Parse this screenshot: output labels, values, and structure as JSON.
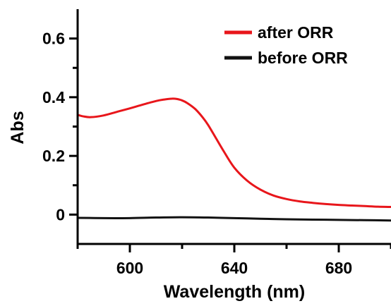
{
  "chart_data": {
    "type": "line",
    "xlabel": "Wavelength (nm)",
    "ylabel": "Abs",
    "xlim": [
      580,
      700
    ],
    "ylim": [
      -0.1,
      0.7
    ],
    "xticks_major": [
      600,
      640,
      680
    ],
    "xticks_minor": [
      580,
      620,
      660,
      700
    ],
    "yticks_major": [
      0,
      0.2,
      0.4,
      0.6
    ],
    "yticks_minor": [
      0.1,
      0.3,
      0.5
    ],
    "ytick_labels": [
      "0",
      "0.2",
      "0.4",
      "0.6"
    ],
    "xtick_labels": [
      "600",
      "640",
      "680"
    ],
    "grid": false,
    "legend_position": "top-right",
    "series": [
      {
        "name": "after ORR",
        "color": "#e8161b",
        "x": [
          580,
          582,
          585,
          590,
          595,
          600,
          605,
          610,
          613,
          616,
          618,
          620,
          622,
          625,
          628,
          630,
          633,
          636,
          640,
          645,
          650,
          655,
          660,
          665,
          670,
          675,
          680,
          685,
          690,
          695,
          700
        ],
        "y": [
          0.34,
          0.335,
          0.332,
          0.338,
          0.35,
          0.362,
          0.375,
          0.387,
          0.392,
          0.395,
          0.394,
          0.389,
          0.38,
          0.36,
          0.33,
          0.305,
          0.26,
          0.215,
          0.16,
          0.115,
          0.085,
          0.065,
          0.053,
          0.045,
          0.04,
          0.036,
          0.033,
          0.031,
          0.029,
          0.027,
          0.026
        ]
      },
      {
        "name": "before ORR",
        "color": "#111111",
        "x": [
          580,
          590,
          600,
          610,
          620,
          630,
          640,
          650,
          660,
          670,
          680,
          690,
          700
        ],
        "y": [
          -0.011,
          -0.012,
          -0.012,
          -0.01,
          -0.009,
          -0.01,
          -0.012,
          -0.014,
          -0.016,
          -0.017,
          -0.018,
          -0.019,
          -0.02
        ]
      }
    ]
  }
}
